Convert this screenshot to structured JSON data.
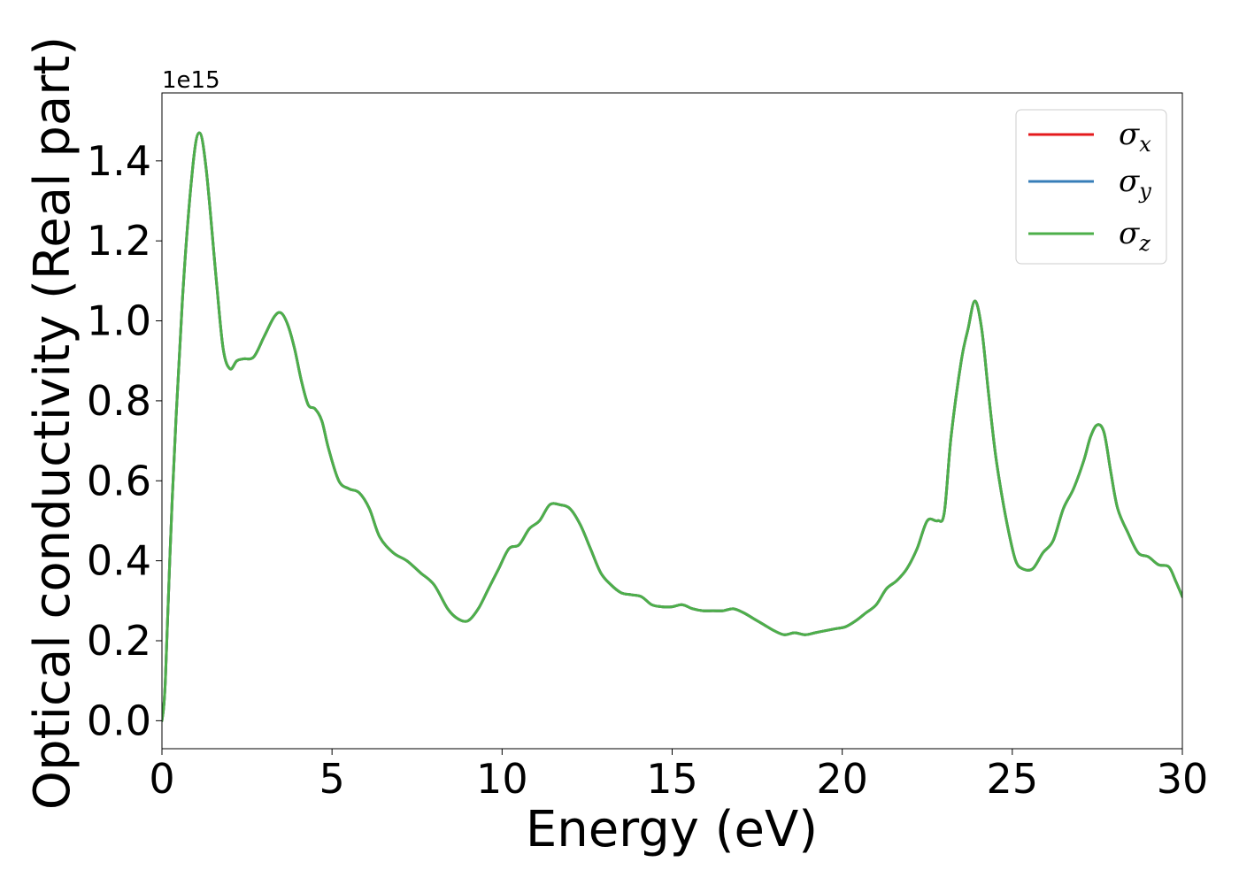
{
  "chart_data": {
    "type": "line",
    "xlabel": "Energy (eV)",
    "ylabel": "Optical conductivity (Real part)",
    "y_offset_label": "1e15",
    "xlim": [
      0,
      30
    ],
    "ylim": [
      -0.07,
      1.57
    ],
    "x_ticks": [
      0,
      5,
      10,
      15,
      20,
      25,
      30
    ],
    "x_tick_labels": [
      "0",
      "5",
      "10",
      "15",
      "20",
      "25",
      "30"
    ],
    "y_ticks": [
      0.0,
      0.2,
      0.4,
      0.6,
      0.8,
      1.0,
      1.2,
      1.4
    ],
    "y_tick_labels": [
      "0.0",
      "0.2",
      "0.4",
      "0.6",
      "0.8",
      "1.0",
      "1.2",
      "1.4"
    ],
    "grid": false,
    "legend_position": "top-right",
    "x": [
      0.0,
      0.1,
      0.3,
      0.6,
      0.9,
      1.1,
      1.3,
      1.6,
      1.8,
      2.0,
      2.2,
      2.4,
      2.7,
      3.0,
      3.3,
      3.5,
      3.7,
      3.9,
      4.1,
      4.3,
      4.5,
      4.7,
      4.9,
      5.2,
      5.5,
      5.8,
      6.1,
      6.4,
      6.8,
      7.2,
      7.6,
      8.0,
      8.4,
      8.7,
      9.0,
      9.3,
      9.6,
      9.9,
      10.2,
      10.5,
      10.8,
      11.1,
      11.4,
      11.7,
      12.0,
      12.3,
      12.6,
      12.9,
      13.2,
      13.5,
      13.8,
      14.1,
      14.4,
      14.7,
      15.0,
      15.3,
      15.6,
      15.9,
      16.2,
      16.5,
      16.8,
      17.1,
      17.4,
      17.7,
      18.0,
      18.3,
      18.6,
      18.9,
      19.2,
      19.5,
      19.8,
      20.1,
      20.4,
      20.7,
      21.0,
      21.3,
      21.6,
      21.9,
      22.2,
      22.5,
      22.8,
      23.0,
      23.2,
      23.5,
      23.7,
      23.9,
      24.1,
      24.3,
      24.5,
      24.7,
      24.9,
      25.1,
      25.3,
      25.6,
      25.9,
      26.2,
      26.5,
      26.8,
      27.1,
      27.3,
      27.5,
      27.7,
      27.9,
      28.1,
      28.4,
      28.7,
      29.0,
      29.3,
      29.6,
      29.8,
      30.0
    ],
    "series": [
      {
        "name": "σx",
        "color": "#e41a1c",
        "values": [
          0.0,
          0.1,
          0.55,
          1.05,
          1.38,
          1.47,
          1.38,
          1.1,
          0.93,
          0.88,
          0.9,
          0.905,
          0.91,
          0.96,
          1.01,
          1.02,
          0.99,
          0.93,
          0.85,
          0.79,
          0.78,
          0.75,
          0.68,
          0.6,
          0.58,
          0.57,
          0.53,
          0.46,
          0.42,
          0.4,
          0.37,
          0.34,
          0.28,
          0.255,
          0.25,
          0.28,
          0.33,
          0.38,
          0.43,
          0.44,
          0.48,
          0.5,
          0.54,
          0.54,
          0.53,
          0.49,
          0.43,
          0.37,
          0.34,
          0.32,
          0.315,
          0.31,
          0.29,
          0.285,
          0.285,
          0.29,
          0.28,
          0.275,
          0.275,
          0.275,
          0.28,
          0.27,
          0.255,
          0.24,
          0.225,
          0.215,
          0.22,
          0.215,
          0.22,
          0.225,
          0.23,
          0.235,
          0.25,
          0.27,
          0.29,
          0.33,
          0.35,
          0.38,
          0.43,
          0.5,
          0.5,
          0.52,
          0.71,
          0.9,
          0.98,
          1.05,
          0.98,
          0.82,
          0.67,
          0.56,
          0.47,
          0.4,
          0.38,
          0.38,
          0.42,
          0.45,
          0.53,
          0.58,
          0.65,
          0.71,
          0.74,
          0.72,
          0.62,
          0.53,
          0.47,
          0.42,
          0.41,
          0.39,
          0.385,
          0.35,
          0.31
        ]
      },
      {
        "name": "σy",
        "color": "#377eb8",
        "values": [
          0.0,
          0.1,
          0.55,
          1.05,
          1.38,
          1.47,
          1.38,
          1.1,
          0.93,
          0.88,
          0.9,
          0.905,
          0.91,
          0.96,
          1.01,
          1.02,
          0.99,
          0.93,
          0.85,
          0.79,
          0.78,
          0.75,
          0.68,
          0.6,
          0.58,
          0.57,
          0.53,
          0.46,
          0.42,
          0.4,
          0.37,
          0.34,
          0.28,
          0.255,
          0.25,
          0.28,
          0.33,
          0.38,
          0.43,
          0.44,
          0.48,
          0.5,
          0.54,
          0.54,
          0.53,
          0.49,
          0.43,
          0.37,
          0.34,
          0.32,
          0.315,
          0.31,
          0.29,
          0.285,
          0.285,
          0.29,
          0.28,
          0.275,
          0.275,
          0.275,
          0.28,
          0.27,
          0.255,
          0.24,
          0.225,
          0.215,
          0.22,
          0.215,
          0.22,
          0.225,
          0.23,
          0.235,
          0.25,
          0.27,
          0.29,
          0.33,
          0.35,
          0.38,
          0.43,
          0.5,
          0.5,
          0.52,
          0.71,
          0.9,
          0.98,
          1.05,
          0.98,
          0.82,
          0.67,
          0.56,
          0.47,
          0.4,
          0.38,
          0.38,
          0.42,
          0.45,
          0.53,
          0.58,
          0.65,
          0.71,
          0.74,
          0.72,
          0.62,
          0.53,
          0.47,
          0.42,
          0.41,
          0.39,
          0.385,
          0.35,
          0.31
        ]
      },
      {
        "name": "σz",
        "color": "#4daf4a",
        "values": [
          0.0,
          0.1,
          0.55,
          1.05,
          1.38,
          1.47,
          1.38,
          1.1,
          0.93,
          0.88,
          0.9,
          0.905,
          0.91,
          0.96,
          1.01,
          1.02,
          0.99,
          0.93,
          0.85,
          0.79,
          0.78,
          0.75,
          0.68,
          0.6,
          0.58,
          0.57,
          0.53,
          0.46,
          0.42,
          0.4,
          0.37,
          0.34,
          0.28,
          0.255,
          0.25,
          0.28,
          0.33,
          0.38,
          0.43,
          0.44,
          0.48,
          0.5,
          0.54,
          0.54,
          0.53,
          0.49,
          0.43,
          0.37,
          0.34,
          0.32,
          0.315,
          0.31,
          0.29,
          0.285,
          0.285,
          0.29,
          0.28,
          0.275,
          0.275,
          0.275,
          0.28,
          0.27,
          0.255,
          0.24,
          0.225,
          0.215,
          0.22,
          0.215,
          0.22,
          0.225,
          0.23,
          0.235,
          0.25,
          0.27,
          0.29,
          0.33,
          0.35,
          0.38,
          0.43,
          0.5,
          0.5,
          0.52,
          0.71,
          0.9,
          0.98,
          1.05,
          0.98,
          0.82,
          0.67,
          0.56,
          0.47,
          0.4,
          0.38,
          0.38,
          0.42,
          0.45,
          0.53,
          0.58,
          0.65,
          0.71,
          0.74,
          0.72,
          0.62,
          0.53,
          0.47,
          0.42,
          0.41,
          0.39,
          0.385,
          0.35,
          0.31
        ]
      }
    ],
    "legend": [
      {
        "symbol": "σ",
        "sub": "x",
        "color": "#e41a1c"
      },
      {
        "symbol": "σ",
        "sub": "y",
        "color": "#377eb8"
      },
      {
        "symbol": "σ",
        "sub": "z",
        "color": "#4daf4a"
      }
    ]
  }
}
